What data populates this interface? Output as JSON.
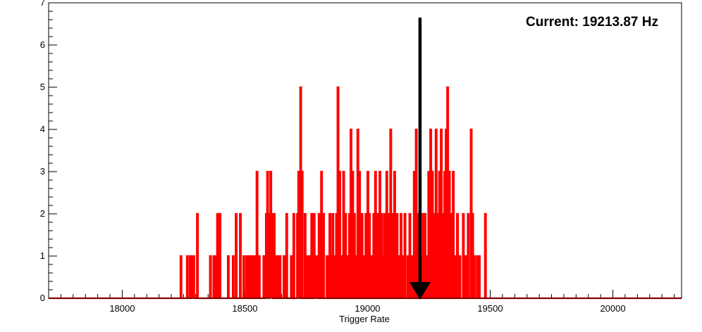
{
  "chart_data": {
    "type": "histogram",
    "title": "",
    "xlabel": "Trigger Rate",
    "ylabel": "",
    "xlim": [
      17700,
      20280
    ],
    "ylim": [
      0,
      7
    ],
    "x_ticks": [
      18000,
      18500,
      19000,
      19500,
      20000
    ],
    "y_ticks": [
      0,
      1,
      2,
      3,
      4,
      5,
      6,
      7
    ],
    "bin_width": 5,
    "grid": false,
    "legend": "none",
    "series": [
      {
        "color": "#ff0000",
        "bins": [
          [
            18237,
            1
          ],
          [
            18263,
            1
          ],
          [
            18275,
            1
          ],
          [
            18284,
            1
          ],
          [
            18289,
            1
          ],
          [
            18304,
            2
          ],
          [
            18357,
            1
          ],
          [
            18371,
            1
          ],
          [
            18377,
            1
          ],
          [
            18386,
            2
          ],
          [
            18396,
            2
          ],
          [
            18430,
            1
          ],
          [
            18450,
            1
          ],
          [
            18462,
            2
          ],
          [
            18479,
            2
          ],
          [
            18493,
            1
          ],
          [
            18505,
            1
          ],
          [
            18514,
            1
          ],
          [
            18524,
            1
          ],
          [
            18534,
            1
          ],
          [
            18540,
            1
          ],
          [
            18543,
            1
          ],
          [
            18547,
            3
          ],
          [
            18556,
            1
          ],
          [
            18575,
            1
          ],
          [
            18585,
            2
          ],
          [
            18590,
            3
          ],
          [
            18598,
            2
          ],
          [
            18603,
            3
          ],
          [
            18608,
            2
          ],
          [
            18617,
            2
          ],
          [
            18623,
            1
          ],
          [
            18631,
            1
          ],
          [
            18641,
            1
          ],
          [
            18657,
            1
          ],
          [
            18668,
            2
          ],
          [
            18687,
            1
          ],
          [
            18697,
            2
          ],
          [
            18712,
            2
          ],
          [
            18717,
            3
          ],
          [
            18725,
            5
          ],
          [
            18731,
            3
          ],
          [
            18743,
            2
          ],
          [
            18751,
            1
          ],
          [
            18761,
            1
          ],
          [
            18770,
            2
          ],
          [
            18780,
            2
          ],
          [
            18786,
            1
          ],
          [
            18791,
            1
          ],
          [
            18800,
            2
          ],
          [
            18810,
            3
          ],
          [
            18818,
            2
          ],
          [
            18832,
            1
          ],
          [
            18838,
            1
          ],
          [
            18844,
            2
          ],
          [
            18850,
            1
          ],
          [
            18856,
            2
          ],
          [
            18862,
            1
          ],
          [
            18871,
            2
          ],
          [
            18877,
            5
          ],
          [
            18884,
            3
          ],
          [
            18892,
            1
          ],
          [
            18900,
            3
          ],
          [
            18908,
            2
          ],
          [
            18914,
            1
          ],
          [
            18924,
            2
          ],
          [
            18930,
            4
          ],
          [
            18937,
            3
          ],
          [
            18944,
            2
          ],
          [
            18950,
            1
          ],
          [
            18958,
            4
          ],
          [
            18965,
            3
          ],
          [
            18975,
            2
          ],
          [
            18983,
            1
          ],
          [
            18991,
            2
          ],
          [
            18999,
            3
          ],
          [
            19005,
            2
          ],
          [
            19014,
            1
          ],
          [
            19023,
            2
          ],
          [
            19030,
            3
          ],
          [
            19040,
            2
          ],
          [
            19048,
            3
          ],
          [
            19056,
            2
          ],
          [
            19062,
            1
          ],
          [
            19068,
            2
          ],
          [
            19076,
            3
          ],
          [
            19084,
            2
          ],
          [
            19092,
            4
          ],
          [
            19099,
            2
          ],
          [
            19108,
            3
          ],
          [
            19118,
            2
          ],
          [
            19126,
            1
          ],
          [
            19134,
            2
          ],
          [
            19141,
            1
          ],
          [
            19150,
            2
          ],
          [
            19162,
            1
          ],
          [
            19170,
            2
          ],
          [
            19180,
            1
          ],
          [
            19188,
            3
          ],
          [
            19196,
            4
          ],
          [
            19204,
            2
          ],
          [
            19212,
            3
          ],
          [
            19218,
            1
          ],
          [
            19224,
            2
          ],
          [
            19232,
            2
          ],
          [
            19240,
            1
          ],
          [
            19247,
            3
          ],
          [
            19255,
            4
          ],
          [
            19262,
            3
          ],
          [
            19268,
            2
          ],
          [
            19277,
            4
          ],
          [
            19284,
            2
          ],
          [
            19291,
            3
          ],
          [
            19298,
            4
          ],
          [
            19305,
            2
          ],
          [
            19312,
            3
          ],
          [
            19318,
            4
          ],
          [
            19324,
            5
          ],
          [
            19331,
            3
          ],
          [
            19339,
            2
          ],
          [
            19347,
            3
          ],
          [
            19355,
            1
          ],
          [
            19364,
            2
          ],
          [
            19374,
            1
          ],
          [
            19388,
            2
          ],
          [
            19399,
            1
          ],
          [
            19408,
            2
          ],
          [
            19420,
            4
          ],
          [
            19426,
            2
          ],
          [
            19434,
            1
          ],
          [
            19446,
            1
          ],
          [
            19453,
            1
          ],
          [
            19478,
            2
          ]
        ]
      }
    ],
    "annotations": [
      {
        "text": "Current: 19213.87 Hz",
        "x": 19213.87,
        "kind": "arrow"
      }
    ]
  }
}
